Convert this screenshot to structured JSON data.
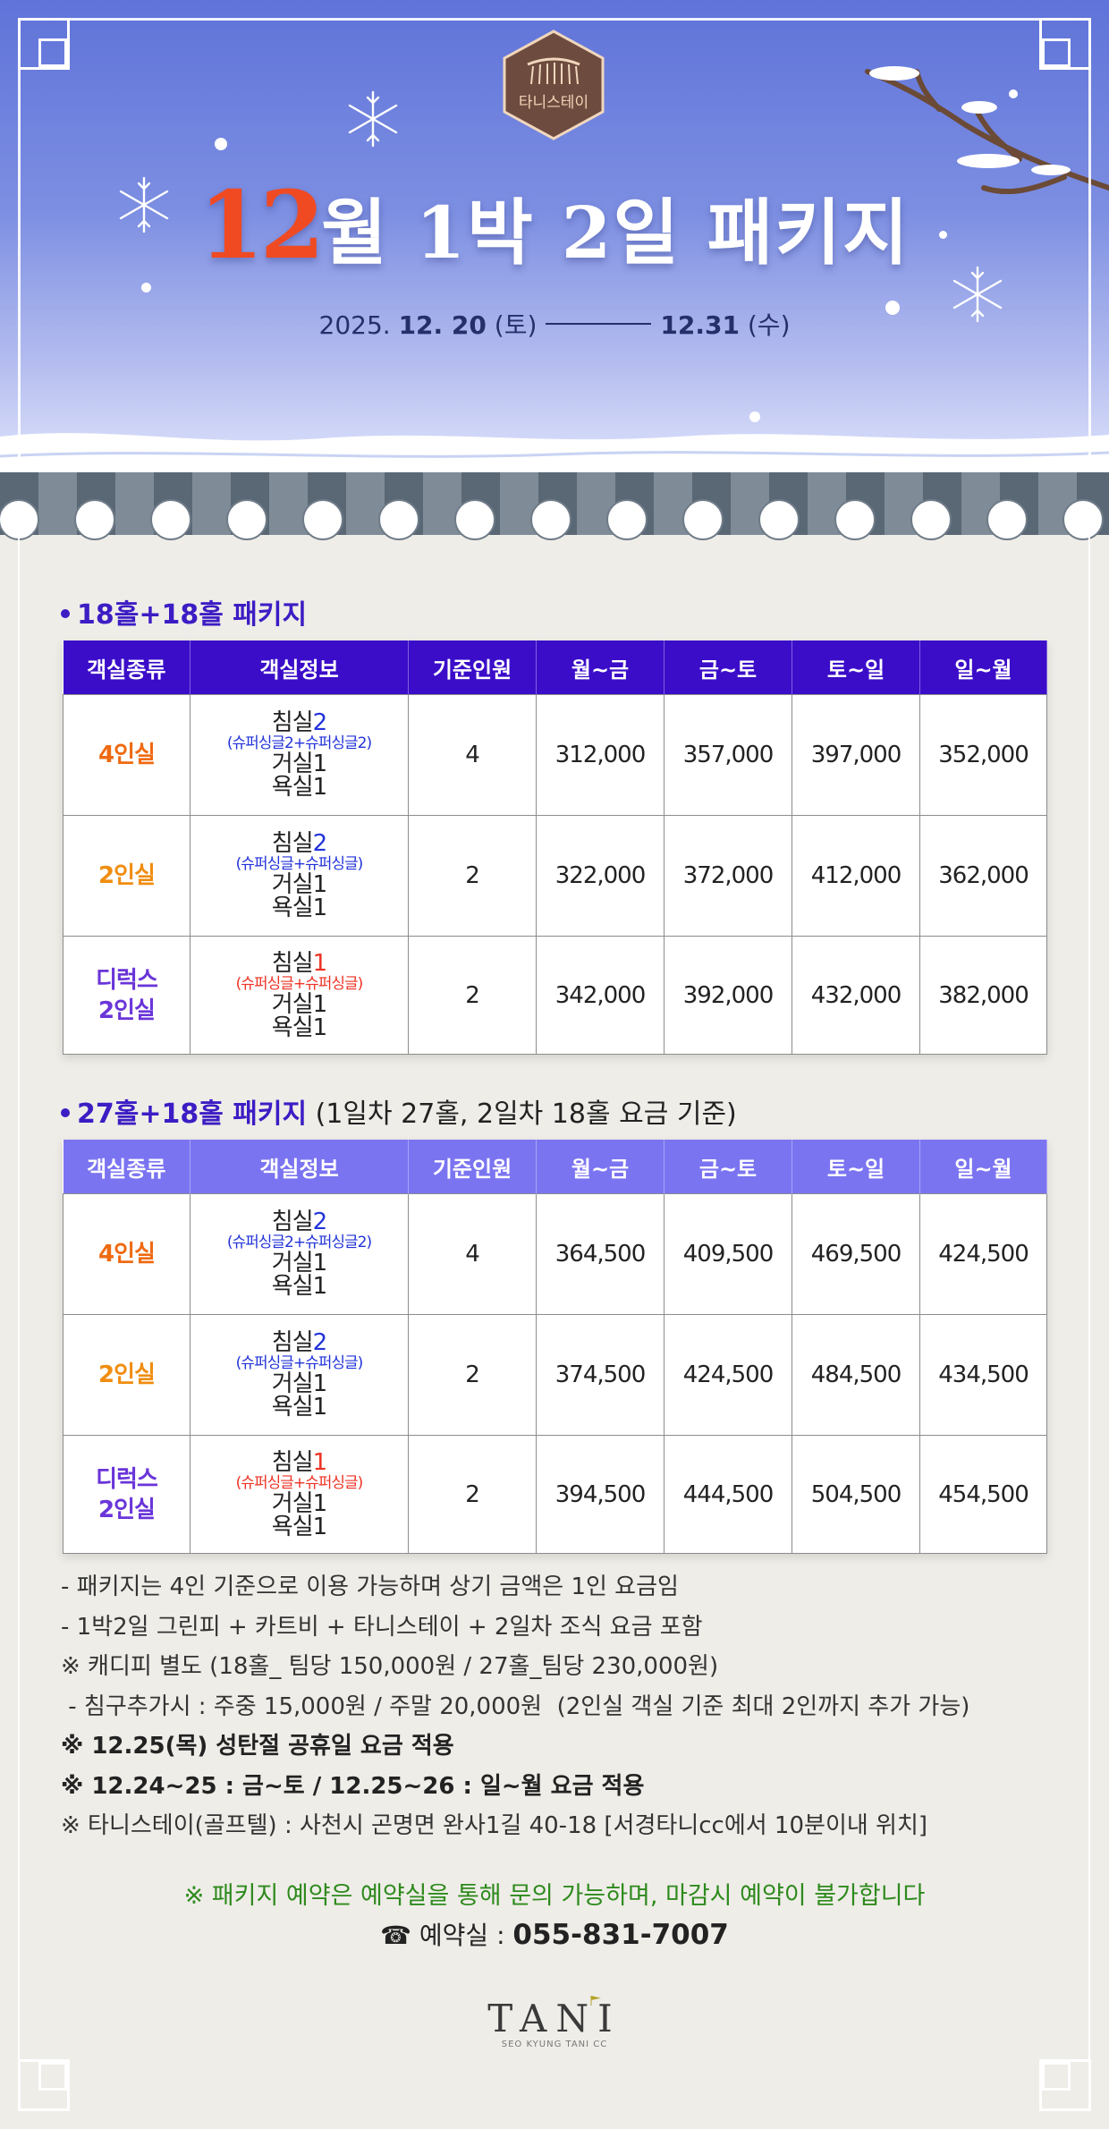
{
  "header": {
    "brand": "타니스테이",
    "title_accent": "12",
    "title_rest": "월 1박 2일 패키지",
    "date_year": "2025. ",
    "date_start": "12. 20",
    "date_start_day": " (토)",
    "date_end": "12.31",
    "date_end_day": " (수)"
  },
  "columns": [
    "객실종류",
    "객실정보",
    "기준인원",
    "월~금",
    "금~토",
    "토~일",
    "일~월"
  ],
  "section1": {
    "title": "18홀+18홀 패키지",
    "rows": [
      {
        "type": "4인실",
        "bed": "침실",
        "bed_count": "2",
        "bed_detail": "(슈퍼싱글2+슈퍼싱글2)",
        "living": "거실1",
        "bath": "욕실1",
        "people": "4",
        "p1": "312,000",
        "p2": "357,000",
        "p3": "397,000",
        "p4": "352,000"
      },
      {
        "type": "2인실",
        "bed": "침실",
        "bed_count": "2",
        "bed_detail": "(슈퍼싱글+슈퍼싱글)",
        "living": "거실1",
        "bath": "욕실1",
        "people": "2",
        "p1": "322,000",
        "p2": "372,000",
        "p3": "412,000",
        "p4": "362,000"
      },
      {
        "type_line1": "디럭스",
        "type_line2": "2인실",
        "bed": "침실",
        "bed_count": "1",
        "bed_detail": "(슈퍼싱글+슈퍼싱글)",
        "living": "거실1",
        "bath": "욕실1",
        "people": "2",
        "p1": "342,000",
        "p2": "392,000",
        "p3": "432,000",
        "p4": "382,000"
      }
    ]
  },
  "section2": {
    "title": "27홀+18홀 패키지",
    "title_note": " (1일차 27홀, 2일차 18홀 요금 기준)",
    "rows": [
      {
        "type": "4인실",
        "bed": "침실",
        "bed_count": "2",
        "bed_detail": "(슈퍼싱글2+슈퍼싱글2)",
        "living": "거실1",
        "bath": "욕실1",
        "people": "4",
        "p1": "364,500",
        "p2": "409,500",
        "p3": "469,500",
        "p4": "424,500"
      },
      {
        "type": "2인실",
        "bed": "침실",
        "bed_count": "2",
        "bed_detail": "(슈퍼싱글+슈퍼싱글)",
        "living": "거실1",
        "bath": "욕실1",
        "people": "2",
        "p1": "374,500",
        "p2": "424,500",
        "p3": "484,500",
        "p4": "434,500"
      },
      {
        "type_line1": "디럭스",
        "type_line2": "2인실",
        "bed": "침실",
        "bed_count": "1",
        "bed_detail": "(슈퍼싱글+슈퍼싱글)",
        "living": "거실1",
        "bath": "욕실1",
        "people": "2",
        "p1": "394,500",
        "p2": "444,500",
        "p3": "504,500",
        "p4": "454,500"
      }
    ]
  },
  "notes": [
    "- 패키지는 4인 기준으로 이용 가능하며 상기 금액은 1인 요금임",
    "- 1박2일 그린피 + 카트비 + 타니스테이 + 2일차 조식 요금 포함",
    "※ 캐디피 별도 (18홀_ 팀당 150,000원 / 27홀_팀당 230,000원)",
    " - 침구추가시 : 주중 15,000원 / 주말 20,000원  (2인실 객실 기준 최대 2인까지 추가 가능)",
    "※ 12.25(목) 성탄절 공휴일 요금 적용",
    "※ 12.24~25 : 금~토 / 12.25~26 : 일~월 요금 적용",
    "※ 타니스테이(골프텔) : 사천시 곤명면 완사1길 40-18 [서경타니cc에서 10분이내 위치]"
  ],
  "notice": "※ 패키지 예약은 예약실을 통해 문의 가능하며, 마감시 예약이 불가합니다",
  "phone": {
    "label": "☎ 예약실 : ",
    "number": "055-831-7007"
  },
  "footer_logo": {
    "word": "TANI",
    "sub": "SEO KYUNG TANI CC"
  },
  "colors": {
    "header_t1": "#3b0dc9",
    "header_t2": "#7b74f1",
    "accent": "#f04a23",
    "notice": "#2e8a1d"
  }
}
